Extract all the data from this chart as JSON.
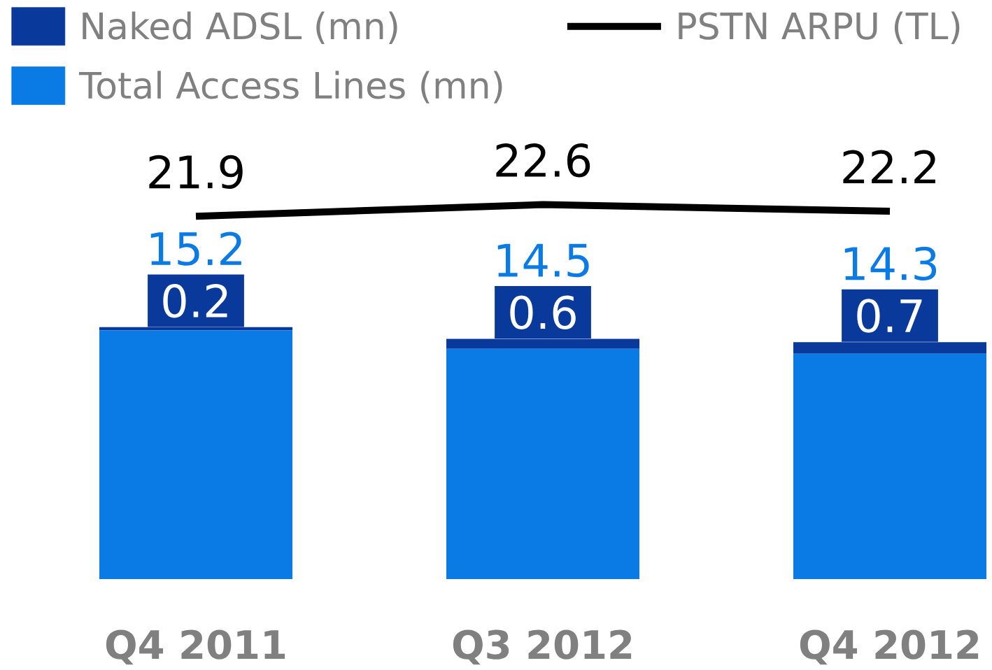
{
  "chart_data": {
    "type": "bar",
    "stacked": true,
    "categories": [
      "Q4 2011",
      "Q3 2012",
      "Q4 2012"
    ],
    "series": [
      {
        "name": "Total Access Lines (mn)",
        "color": "#0a7ae4",
        "values": [
          15.0,
          13.9,
          13.6
        ]
      },
      {
        "name": "Naked ADSL (mn)",
        "color": "#08399b",
        "values": [
          0.2,
          0.6,
          0.7
        ],
        "value_labels": [
          "0.2",
          "0.6",
          "0.7"
        ]
      },
      {
        "name": "PSTN ARPU (TL)",
        "type": "line",
        "color": "#000000",
        "values": [
          21.9,
          22.6,
          22.2
        ],
        "value_labels": [
          "21.9",
          "22.6",
          "22.2"
        ]
      }
    ],
    "totals": [
      "15.2",
      "14.5",
      "14.3"
    ],
    "tick_labels": "x",
    "legend": "top left"
  }
}
